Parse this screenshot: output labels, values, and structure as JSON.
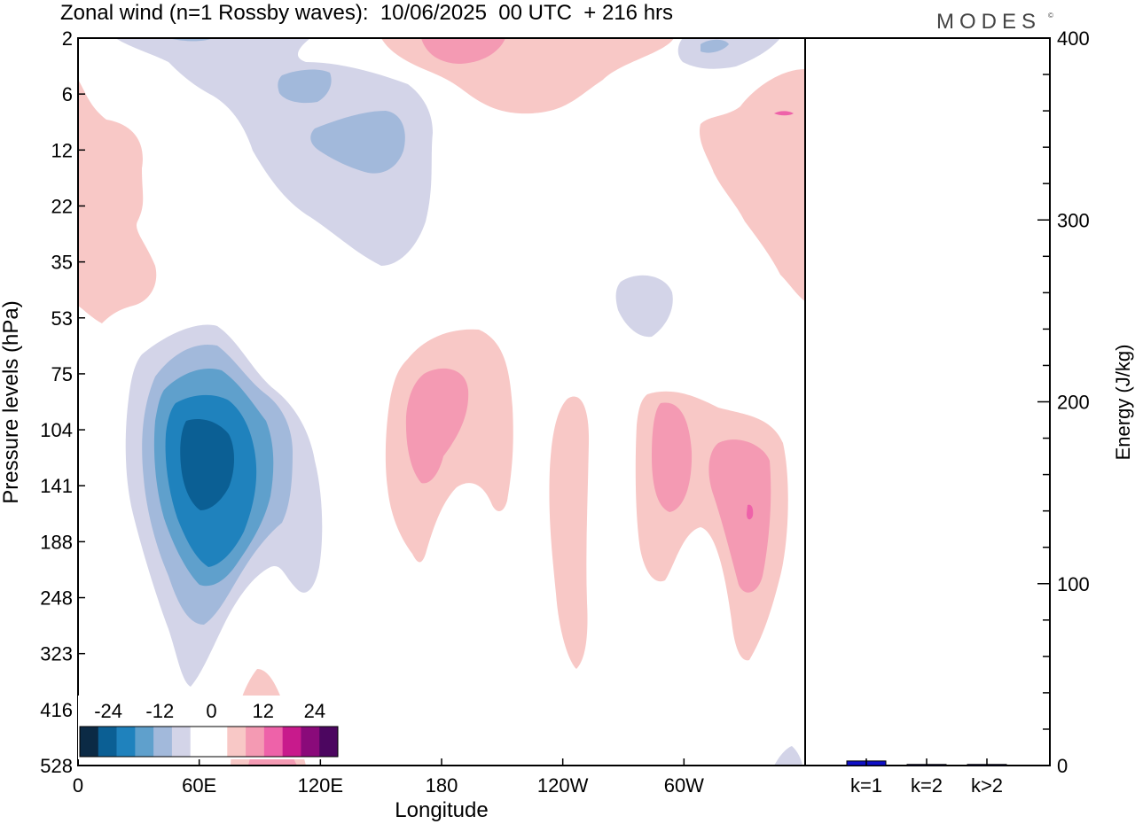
{
  "title": "Zonal wind (n=1 Rossby waves):  10/06/2025  00 UTC  + 216 hrs",
  "logo": "MODES",
  "logo_mark": "©",
  "colors": {
    "cyan_3": "#0b5f94",
    "cyan_2": "#1f82bd",
    "cyan_1": "#5fa0cc",
    "cyan_0": "#a2b9db",
    "cyan_light": "#d3d4e8",
    "pink_light": "#f8c8c6",
    "pink_1": "#f49ab3",
    "pink_2": "#ee62a9",
    "bar": "#1010c8"
  },
  "chart_data": [
    {
      "type": "heatmap",
      "title": "",
      "xlabel": "Longitude",
      "ylabel": "Pressure levels (hPa)",
      "x_ticks": [
        "0",
        "60E",
        "120E",
        "180",
        "120W",
        "60W"
      ],
      "x_tick_values": [
        0,
        60,
        120,
        180,
        240,
        300
      ],
      "xlim": [
        0,
        360
      ],
      "y_ticks": [
        "2",
        "6",
        "12",
        "22",
        "35",
        "53",
        "75",
        "104",
        "141",
        "188",
        "248",
        "323",
        "416",
        "528"
      ],
      "colorbar": {
        "labels": [
          "-24",
          "-12",
          "0",
          "12",
          "24"
        ],
        "label_values": [
          -24,
          -12,
          0,
          12,
          24
        ],
        "levels": [
          -27,
          -24,
          -21,
          -18,
          -15,
          -12,
          -9,
          -6,
          -3,
          3,
          6,
          9,
          12,
          15,
          18,
          21,
          24,
          27
        ],
        "colors": [
          "#0b2a45",
          "#0b5f94",
          "#1f82bd",
          "#5fa0cc",
          "#a2b9db",
          "#d3d4e8",
          "#ffffff",
          "#ffffff",
          "#f8c8c6",
          "#f49ab3",
          "#ee62a9",
          "#c81a8c",
          "#8a0a7a",
          "#4c0660"
        ]
      },
      "features": [
        {
          "sign": "negative",
          "center_lon": 60,
          "center_hpa": 125,
          "min_value": -15
        },
        {
          "sign": "positive",
          "center_lon": 175,
          "center_hpa": 100,
          "max_value": 9
        },
        {
          "sign": "positive",
          "center_lon": 280,
          "center_hpa": 125,
          "max_value": 9
        },
        {
          "sign": "positive",
          "center_lon": 335,
          "center_hpa": 140,
          "max_value": 12
        },
        {
          "sign": "positive",
          "center_lon": 185,
          "center_hpa": 2,
          "max_value": 6
        },
        {
          "sign": "negative",
          "center_lon": 125,
          "center_hpa": 10,
          "min_value": -6
        }
      ]
    },
    {
      "type": "bar",
      "title": "",
      "categories": [
        "k=1",
        "k=2",
        "k>2"
      ],
      "values": [
        2.5,
        0.6,
        0.6
      ],
      "ylabel": "Energy (J/kg)",
      "ylim": [
        0,
        400
      ],
      "y_ticks": [
        "0",
        "100",
        "200",
        "300",
        "400"
      ],
      "y_tick_values": [
        0,
        100,
        200,
        300,
        400
      ]
    }
  ]
}
